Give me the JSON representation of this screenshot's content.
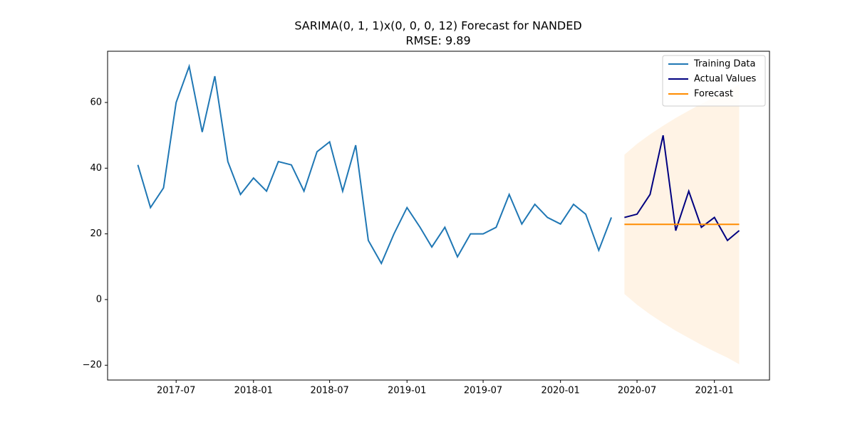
{
  "chart_data": {
    "type": "line",
    "title": "SARIMA(0, 1, 1)x(0, 0, 0, 12) Forecast for NANDED",
    "subtitle": "RMSE: 9.89",
    "xlim": [
      "2017-01-19",
      "2021-05-12"
    ],
    "xticks": [
      "2017-07",
      "2018-01",
      "2018-07",
      "2019-01",
      "2019-07",
      "2020-01",
      "2020-07",
      "2021-01"
    ],
    "ylim": [
      -24.5,
      75.6
    ],
    "yticks": [
      {
        "value": -20,
        "label": "−20"
      },
      0,
      20,
      40,
      60
    ],
    "grid": false,
    "legend": "upper right",
    "series": [
      {
        "name": "Training Data",
        "color": "#1f77b4",
        "x": [
          "2017-04",
          "2017-05",
          "2017-06",
          "2017-07",
          "2017-08",
          "2017-09",
          "2017-10",
          "2017-11",
          "2017-12",
          "2018-01",
          "2018-02",
          "2018-03",
          "2018-04",
          "2018-05",
          "2018-06",
          "2018-07",
          "2018-08",
          "2018-09",
          "2018-10",
          "2018-11",
          "2018-12",
          "2019-01",
          "2019-02",
          "2019-03",
          "2019-04",
          "2019-05",
          "2019-06",
          "2019-07",
          "2019-08",
          "2019-09",
          "2019-10",
          "2019-11",
          "2019-12",
          "2020-01",
          "2020-02",
          "2020-03",
          "2020-04",
          "2020-05"
        ],
        "values": [
          41,
          28,
          34,
          60,
          71,
          51,
          68,
          42,
          32,
          37,
          33,
          42,
          41,
          33,
          45,
          48,
          33,
          47,
          18,
          11,
          20,
          28,
          22,
          16,
          22,
          13,
          20,
          20,
          22,
          32,
          23,
          29,
          25,
          23,
          29,
          26,
          15,
          25
        ]
      },
      {
        "name": "Actual Values",
        "color": "#000080",
        "x": [
          "2020-06",
          "2020-07",
          "2020-08",
          "2020-09",
          "2020-10",
          "2020-11",
          "2020-12",
          "2021-01",
          "2021-02",
          "2021-03"
        ],
        "values": [
          25,
          26,
          32,
          50,
          21,
          33,
          22,
          25,
          18,
          21
        ]
      },
      {
        "name": "Forecast",
        "color": "#ff8c00",
        "x": [
          "2020-06",
          "2020-07",
          "2020-08",
          "2020-09",
          "2020-10",
          "2020-11",
          "2020-12",
          "2021-01",
          "2021-02",
          "2021-03"
        ],
        "values": [
          22.9,
          22.9,
          22.9,
          22.9,
          22.9,
          22.9,
          22.9,
          22.9,
          22.9,
          22.9
        ],
        "lower": [
          1.7,
          -1.6,
          -4.5,
          -7.1,
          -9.5,
          -11.7,
          -13.8,
          -15.8,
          -17.7,
          -19.7
        ],
        "upper": [
          44.1,
          47.4,
          50.3,
          52.9,
          55.3,
          57.5,
          59.6,
          61.6,
          63.5,
          65.5
        ]
      }
    ]
  }
}
